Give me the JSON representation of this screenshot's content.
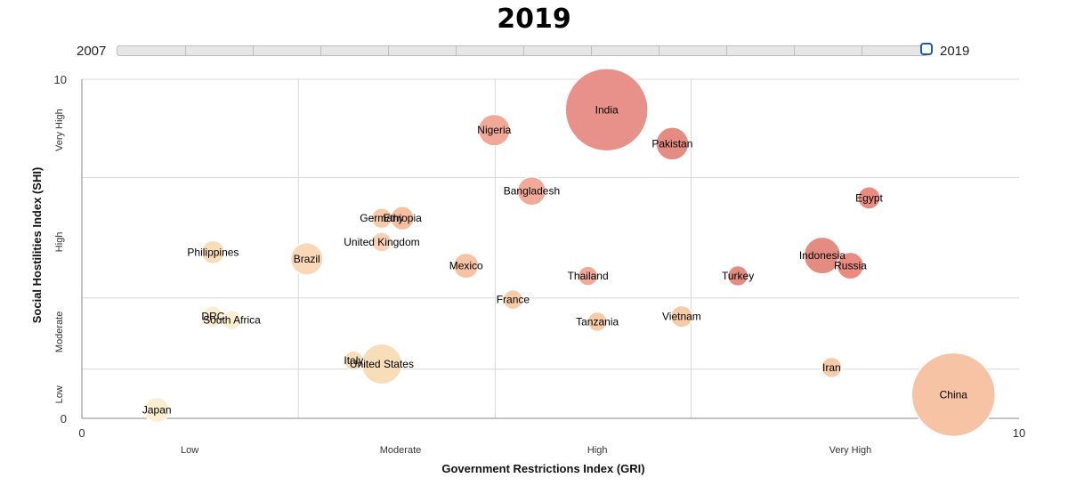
{
  "title": "2019",
  "slider": {
    "start_label": "2007",
    "end_label": "2019",
    "selected": 2019
  },
  "chart_data": {
    "type": "scatter",
    "subtype": "bubble",
    "xlabel": "Government Restrictions Index (GRI)",
    "ylabel": "Social Hostilities Index (SHI)",
    "xlim": [
      0,
      10
    ],
    "ylim": [
      0,
      10
    ],
    "x_ticks": [
      {
        "value": 0,
        "label": "0"
      },
      {
        "value": 10,
        "label": "10"
      }
    ],
    "y_ticks": [
      {
        "value": 0,
        "label": "0"
      },
      {
        "value": 10,
        "label": "10"
      }
    ],
    "x_categories": [
      {
        "label": "Low",
        "center": 1.15
      },
      {
        "label": "Moderate",
        "center": 3.4
      },
      {
        "label": "High",
        "center": 5.5
      },
      {
        "label": "Very High",
        "center": 8.2
      }
    ],
    "x_grid": [
      2.31,
      4.41,
      6.5
    ],
    "y_categories": [
      {
        "label": "Low",
        "center": 0.7
      },
      {
        "label": "Moderate",
        "center": 2.55
      },
      {
        "label": "High",
        "center": 5.2
      },
      {
        "label": "Very High",
        "center": 8.5
      }
    ],
    "y_grid": [
      1.45,
      3.55,
      7.1
    ],
    "grid": true,
    "color_scale": [
      "#fbeed0",
      "#f6cba8",
      "#f2a994",
      "#e98b80"
    ],
    "points": [
      {
        "name": "India",
        "x": 5.6,
        "y": 9.1,
        "pop": 1366,
        "color": "#e8918a"
      },
      {
        "name": "Nigeria",
        "x": 4.4,
        "y": 8.5,
        "pop": 201,
        "color": "#f2a896"
      },
      {
        "name": "Pakistan",
        "x": 6.3,
        "y": 8.1,
        "pop": 217,
        "color": "#e48c82"
      },
      {
        "name": "Bangladesh",
        "x": 4.8,
        "y": 6.7,
        "pop": 163,
        "color": "#f2aa98"
      },
      {
        "name": "Egypt",
        "x": 8.4,
        "y": 6.5,
        "pop": 100,
        "color": "#e98b80"
      },
      {
        "name": "Germany",
        "x": 3.2,
        "y": 5.9,
        "pop": 83,
        "color": "#f6cba8"
      },
      {
        "name": "Ethiopia",
        "x": 3.42,
        "y": 5.9,
        "pop": 112,
        "color": "#f6c0a0"
      },
      {
        "name": "United Kingdom",
        "x": 3.2,
        "y": 5.2,
        "pop": 67,
        "color": "#f8d2b4"
      },
      {
        "name": "Philippines",
        "x": 1.4,
        "y": 4.9,
        "pop": 108,
        "color": "#f8ddb9"
      },
      {
        "name": "Brazil",
        "x": 2.4,
        "y": 4.7,
        "pop": 211,
        "color": "#f8d8b6"
      },
      {
        "name": "Mexico",
        "x": 4.1,
        "y": 4.5,
        "pop": 128,
        "color": "#f6c3a5"
      },
      {
        "name": "Indonesia",
        "x": 7.9,
        "y": 4.8,
        "pop": 271,
        "color": "#e48c82"
      },
      {
        "name": "Russia",
        "x": 8.2,
        "y": 4.5,
        "pop": 145,
        "color": "#e98b80"
      },
      {
        "name": "Thailand",
        "x": 5.4,
        "y": 4.2,
        "pop": 70,
        "color": "#f2aa98"
      },
      {
        "name": "Turkey",
        "x": 7.0,
        "y": 4.2,
        "pop": 83,
        "color": "#e48c82"
      },
      {
        "name": "France",
        "x": 4.6,
        "y": 3.5,
        "pop": 67,
        "color": "#f6cba8"
      },
      {
        "name": "DRC",
        "x": 1.4,
        "y": 3.0,
        "pop": 87,
        "color": "#fbeed0"
      },
      {
        "name": "South Africa",
        "x": 1.6,
        "y": 2.9,
        "pop": 59,
        "color": "#fbeed0"
      },
      {
        "name": "Tanzania",
        "x": 5.5,
        "y": 2.85,
        "pop": 58,
        "color": "#f6cba8"
      },
      {
        "name": "Vietnam",
        "x": 6.4,
        "y": 3.0,
        "pop": 96,
        "color": "#f6cba8"
      },
      {
        "name": "Italy",
        "x": 2.9,
        "y": 1.7,
        "pop": 60,
        "color": "#f8ddb9"
      },
      {
        "name": "United States",
        "x": 3.2,
        "y": 1.6,
        "pop": 328,
        "color": "#f8ddb9"
      },
      {
        "name": "Iran",
        "x": 8.0,
        "y": 1.5,
        "pop": 83,
        "color": "#f6cba8"
      },
      {
        "name": "China",
        "x": 9.3,
        "y": 0.7,
        "pop": 1398,
        "color": "#f6c3a5"
      },
      {
        "name": "Japan",
        "x": 0.8,
        "y": 0.25,
        "pop": 126,
        "color": "#fbeed0"
      }
    ]
  }
}
